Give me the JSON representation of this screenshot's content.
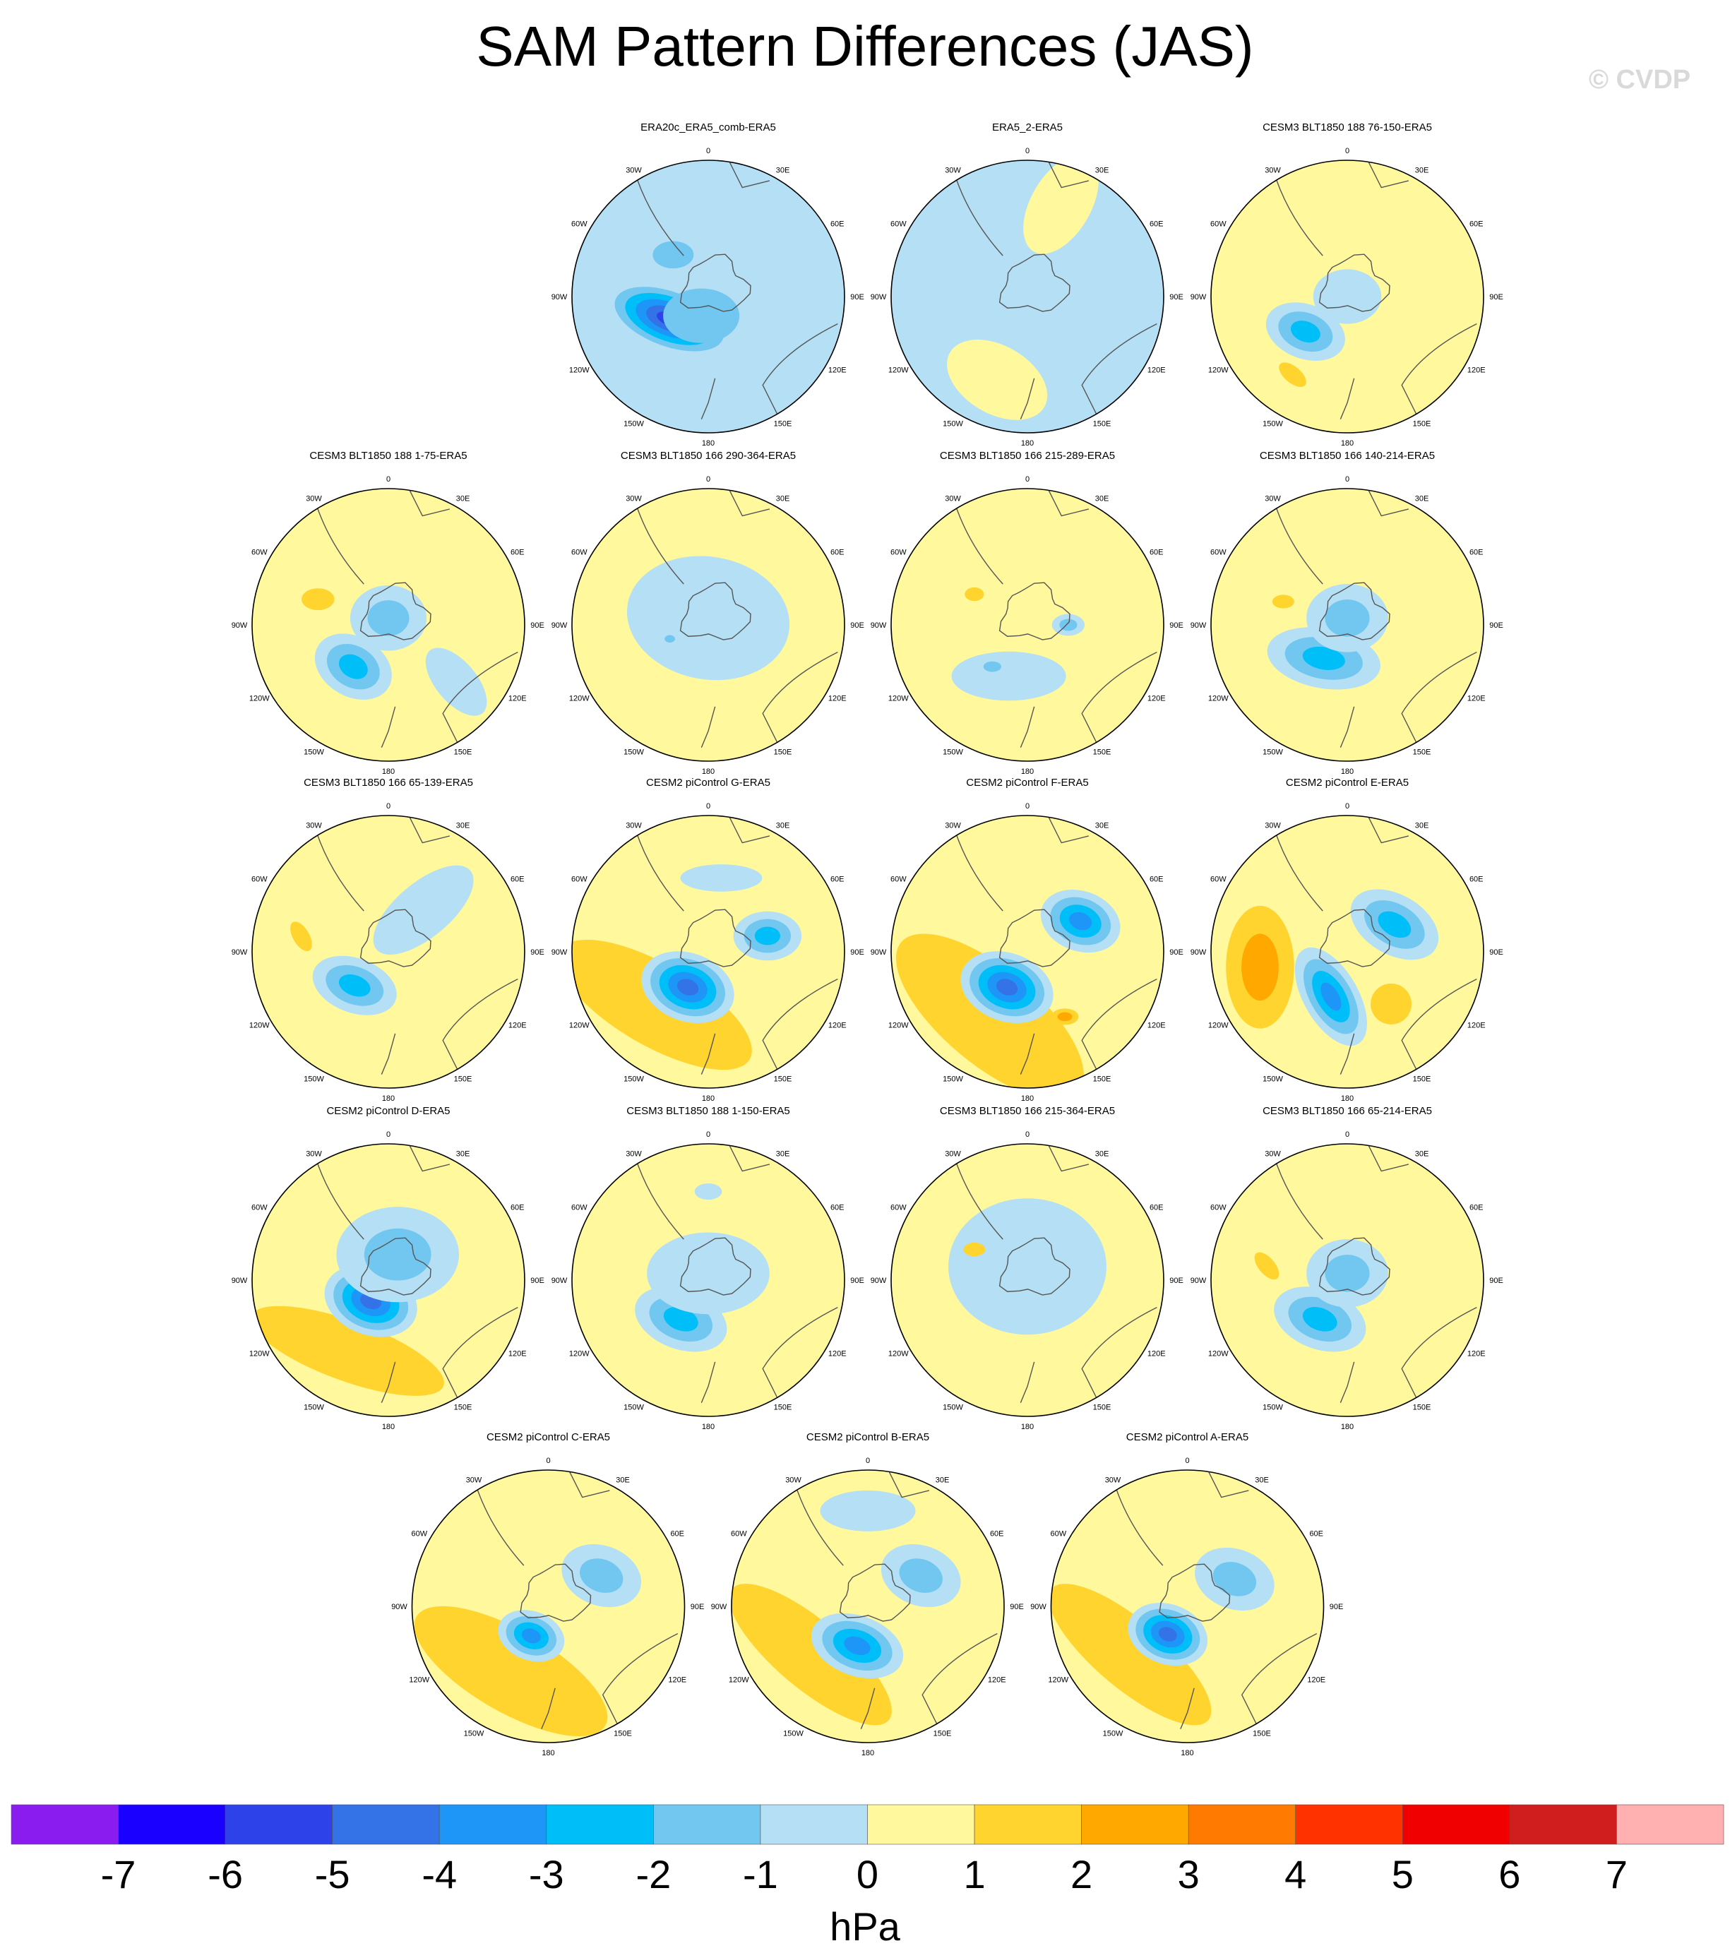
{
  "figure": {
    "title": "SAM Pattern Differences (JAS)",
    "watermark": "© CVDP"
  },
  "chart_data": {
    "type": "contour-map-panels",
    "projection": "south-polar-stereographic",
    "longitude_labels": [
      "0",
      "30E",
      "60E",
      "90E",
      "120E",
      "150E",
      "180",
      "150W",
      "120W",
      "90W",
      "60W",
      "30W"
    ],
    "panels": [
      {
        "row": 0,
        "col": 1,
        "title": "ERA20c_ERA5_comb-ERA5",
        "base": 0,
        "features": [
          {
            "lon": 240,
            "r": 0.33,
            "a": 0.42,
            "b": 0.2,
            "level": -6,
            "rot": 20
          },
          {
            "lon": 200,
            "r": 0.15,
            "a": 0.28,
            "b": 0.2,
            "level": -2,
            "rot": 0
          },
          {
            "lon": 320,
            "r": 0.4,
            "a": 0.15,
            "b": 0.1,
            "level": -2,
            "rot": 0
          }
        ]
      },
      {
        "row": 0,
        "col": 2,
        "title": "ERA5_2-ERA5",
        "base": 0,
        "features": [
          {
            "lon": 0,
            "r": 0.1,
            "a": 0.65,
            "b": 0.55,
            "level": -1,
            "rot": 0
          },
          {
            "lon": 20,
            "r": 0.72,
            "a": 0.4,
            "b": 0.22,
            "level": 1,
            "rot": -60
          },
          {
            "lon": 200,
            "r": 0.65,
            "a": 0.4,
            "b": 0.25,
            "level": 1,
            "rot": 30
          }
        ]
      },
      {
        "row": 0,
        "col": 3,
        "title": "CESM3 BLT1850 188 76-150-ERA5",
        "base": 1,
        "features": [
          {
            "lon": 230,
            "r": 0.4,
            "a": 0.3,
            "b": 0.2,
            "level": -3,
            "rot": 20
          },
          {
            "lon": 0,
            "r": 0.0,
            "a": 0.25,
            "b": 0.2,
            "level": -1,
            "rot": 0
          },
          {
            "lon": 215,
            "r": 0.7,
            "a": 0.12,
            "b": 0.06,
            "level": 2,
            "rot": 40
          }
        ]
      },
      {
        "row": 1,
        "col": 0,
        "title": "CESM3 BLT1850 188 1-75-ERA5",
        "base": 1,
        "features": [
          {
            "lon": 220,
            "r": 0.4,
            "a": 0.3,
            "b": 0.22,
            "level": -3,
            "rot": 30
          },
          {
            "lon": 0,
            "r": 0.05,
            "a": 0.28,
            "b": 0.24,
            "level": -2,
            "rot": 0
          },
          {
            "lon": 290,
            "r": 0.55,
            "a": 0.12,
            "b": 0.08,
            "level": 2,
            "rot": 0
          },
          {
            "lon": 130,
            "r": 0.65,
            "a": 0.3,
            "b": 0.15,
            "level": -1,
            "rot": 50
          }
        ]
      },
      {
        "row": 1,
        "col": 1,
        "title": "CESM3 BLT1850 166 290-364-ERA5",
        "base": 1,
        "features": [
          {
            "lon": 0,
            "r": 0.05,
            "a": 0.6,
            "b": 0.45,
            "level": -1,
            "rot": 10
          },
          {
            "lon": 250,
            "r": 0.3,
            "a": 0.07,
            "b": 0.05,
            "level": -2,
            "rot": 0
          }
        ]
      },
      {
        "row": 1,
        "col": 2,
        "title": "CESM3 BLT1850 166 215-289-ERA5",
        "base": 1,
        "features": [
          {
            "lon": 200,
            "r": 0.4,
            "a": 0.42,
            "b": 0.18,
            "level": -1,
            "rot": 0
          },
          {
            "lon": 220,
            "r": 0.4,
            "a": 0.12,
            "b": 0.07,
            "level": -2,
            "rot": 0
          },
          {
            "lon": 90,
            "r": 0.3,
            "a": 0.12,
            "b": 0.08,
            "level": -2,
            "rot": 0
          },
          {
            "lon": 300,
            "r": 0.45,
            "a": 0.07,
            "b": 0.05,
            "level": 2,
            "rot": 0
          }
        ]
      },
      {
        "row": 1,
        "col": 3,
        "title": "CESM3 BLT1850 166 140-214-ERA5",
        "base": 1,
        "features": [
          {
            "lon": 215,
            "r": 0.3,
            "a": 0.42,
            "b": 0.22,
            "level": -3,
            "rot": 10
          },
          {
            "lon": 0,
            "r": 0.05,
            "a": 0.3,
            "b": 0.25,
            "level": -2,
            "rot": 0
          },
          {
            "lon": 290,
            "r": 0.5,
            "a": 0.08,
            "b": 0.05,
            "level": 2,
            "rot": 0
          }
        ]
      },
      {
        "row": 2,
        "col": 0,
        "title": "CESM3 BLT1850 166 65-139-ERA5",
        "base": 1,
        "features": [
          {
            "lon": 225,
            "r": 0.35,
            "a": 0.32,
            "b": 0.2,
            "level": -3,
            "rot": 20
          },
          {
            "lon": 40,
            "r": 0.4,
            "a": 0.45,
            "b": 0.2,
            "level": -1,
            "rot": -40
          },
          {
            "lon": 280,
            "r": 0.65,
            "a": 0.12,
            "b": 0.06,
            "level": 2,
            "rot": 60
          }
        ]
      },
      {
        "row": 2,
        "col": 1,
        "title": "CESM2 piControl G-ERA5",
        "base": 1,
        "features": [
          {
            "lon": 225,
            "r": 0.55,
            "a": 0.8,
            "b": 0.3,
            "level": 2,
            "rot": 30
          },
          {
            "lon": 210,
            "r": 0.3,
            "a": 0.35,
            "b": 0.25,
            "level": -5,
            "rot": 20
          },
          {
            "lon": 75,
            "r": 0.45,
            "a": 0.25,
            "b": 0.18,
            "level": -3,
            "rot": 0
          },
          {
            "lon": 10,
            "r": 0.55,
            "a": 0.3,
            "b": 0.1,
            "level": -1,
            "rot": 0
          }
        ]
      },
      {
        "row": 2,
        "col": 2,
        "title": "CESM2 piControl F-ERA5",
        "base": 1,
        "features": [
          {
            "lon": 210,
            "r": 0.55,
            "a": 0.85,
            "b": 0.35,
            "level": 2,
            "rot": 40
          },
          {
            "lon": 210,
            "r": 0.3,
            "a": 0.35,
            "b": 0.25,
            "level": -5,
            "rot": 20
          },
          {
            "lon": 60,
            "r": 0.45,
            "a": 0.3,
            "b": 0.22,
            "level": -4,
            "rot": 20
          },
          {
            "lon": 150,
            "r": 0.55,
            "a": 0.1,
            "b": 0.06,
            "level": 3,
            "rot": 0
          }
        ]
      },
      {
        "row": 2,
        "col": 3,
        "title": "CESM2 piControl E-ERA5",
        "base": 1,
        "features": [
          {
            "lon": 260,
            "r": 0.65,
            "a": 0.25,
            "b": 0.45,
            "level": 3,
            "rot": 0
          },
          {
            "lon": 200,
            "r": 0.35,
            "a": 0.4,
            "b": 0.2,
            "level": -4,
            "rot": 60
          },
          {
            "lon": 60,
            "r": 0.4,
            "a": 0.35,
            "b": 0.22,
            "level": -3,
            "rot": 30
          },
          {
            "lon": 140,
            "r": 0.5,
            "a": 0.15,
            "b": 0.15,
            "level": 2,
            "rot": 0
          }
        ]
      },
      {
        "row": 3,
        "col": 0,
        "title": "CESM2 piControl D-ERA5",
        "base": 1,
        "features": [
          {
            "lon": 210,
            "r": 0.6,
            "a": 0.75,
            "b": 0.22,
            "level": 2,
            "rot": 20
          },
          {
            "lon": 220,
            "r": 0.2,
            "a": 0.35,
            "b": 0.25,
            "level": -5,
            "rot": 20
          },
          {
            "lon": 20,
            "r": 0.2,
            "a": 0.45,
            "b": 0.35,
            "level": -2,
            "rot": 0
          }
        ]
      },
      {
        "row": 3,
        "col": 1,
        "title": "CESM3 BLT1850 188 1-150-ERA5",
        "base": 1,
        "features": [
          {
            "lon": 215,
            "r": 0.35,
            "a": 0.35,
            "b": 0.22,
            "level": -3,
            "rot": 20
          },
          {
            "lon": 0,
            "r": 0.05,
            "a": 0.45,
            "b": 0.3,
            "level": -1,
            "rot": 0
          },
          {
            "lon": 0,
            "r": 0.65,
            "a": 0.1,
            "b": 0.06,
            "level": -1,
            "rot": 0
          }
        ]
      },
      {
        "row": 3,
        "col": 2,
        "title": "CESM3 BLT1850 166 215-364-ERA5",
        "base": 1,
        "features": [
          {
            "lon": 0,
            "r": 0.1,
            "a": 0.58,
            "b": 0.5,
            "level": -1,
            "rot": 0
          },
          {
            "lon": 300,
            "r": 0.45,
            "a": 0.08,
            "b": 0.05,
            "level": 2,
            "rot": 0
          }
        ]
      },
      {
        "row": 3,
        "col": 3,
        "title": "CESM3 BLT1850 166 65-214-ERA5",
        "base": 1,
        "features": [
          {
            "lon": 215,
            "r": 0.35,
            "a": 0.35,
            "b": 0.22,
            "level": -3,
            "rot": 20
          },
          {
            "lon": 0,
            "r": 0.05,
            "a": 0.3,
            "b": 0.25,
            "level": -2,
            "rot": 0
          },
          {
            "lon": 280,
            "r": 0.6,
            "a": 0.12,
            "b": 0.06,
            "level": 2,
            "rot": 50
          }
        ]
      },
      {
        "row": 4,
        "col": 0.5,
        "title": "CESM2 piControl C-ERA5",
        "base": 1,
        "features": [
          {
            "lon": 210,
            "r": 0.55,
            "a": 0.8,
            "b": 0.3,
            "level": 2,
            "rot": 30
          },
          {
            "lon": 210,
            "r": 0.25,
            "a": 0.25,
            "b": 0.18,
            "level": -4,
            "rot": 20
          },
          {
            "lon": 60,
            "r": 0.45,
            "a": 0.3,
            "b": 0.22,
            "level": -2,
            "rot": 20
          }
        ]
      },
      {
        "row": 4,
        "col": 1.5,
        "title": "CESM2 piControl B-ERA5",
        "base": 1,
        "features": [
          {
            "lon": 230,
            "r": 0.55,
            "a": 0.75,
            "b": 0.25,
            "level": 2,
            "rot": 40
          },
          {
            "lon": 195,
            "r": 0.3,
            "a": 0.35,
            "b": 0.22,
            "level": -4,
            "rot": 20
          },
          {
            "lon": 60,
            "r": 0.45,
            "a": 0.3,
            "b": 0.22,
            "level": -2,
            "rot": 20
          },
          {
            "lon": 0,
            "r": 0.7,
            "a": 0.35,
            "b": 0.15,
            "level": -1,
            "rot": 0
          }
        ]
      },
      {
        "row": 4,
        "col": 2.5,
        "title": "CESM2 piControl A-ERA5",
        "base": 1,
        "features": [
          {
            "lon": 230,
            "r": 0.55,
            "a": 0.75,
            "b": 0.25,
            "level": 2,
            "rot": 40
          },
          {
            "lon": 215,
            "r": 0.25,
            "a": 0.3,
            "b": 0.22,
            "level": -5,
            "rot": 20
          },
          {
            "lon": 60,
            "r": 0.4,
            "a": 0.3,
            "b": 0.22,
            "level": -2,
            "rot": 20
          }
        ]
      }
    ],
    "colorbar": {
      "label": "hPa",
      "ticks": [
        "-7",
        "-6",
        "-5",
        "-4",
        "-3",
        "-2",
        "-1",
        "0",
        "1",
        "2",
        "3",
        "4",
        "5",
        "6",
        "7"
      ],
      "colors": [
        "#8a1cf0",
        "#1a00ff",
        "#2d42e8",
        "#3472e8",
        "#1e96f8",
        "#00bff8",
        "#72c7f1",
        "#b4dff4",
        "#fff89c",
        "#ffd42e",
        "#ffa800",
        "#ff7a00",
        "#ff3200",
        "#f00000",
        "#d01d1d",
        "#ffb0b0"
      ]
    }
  }
}
